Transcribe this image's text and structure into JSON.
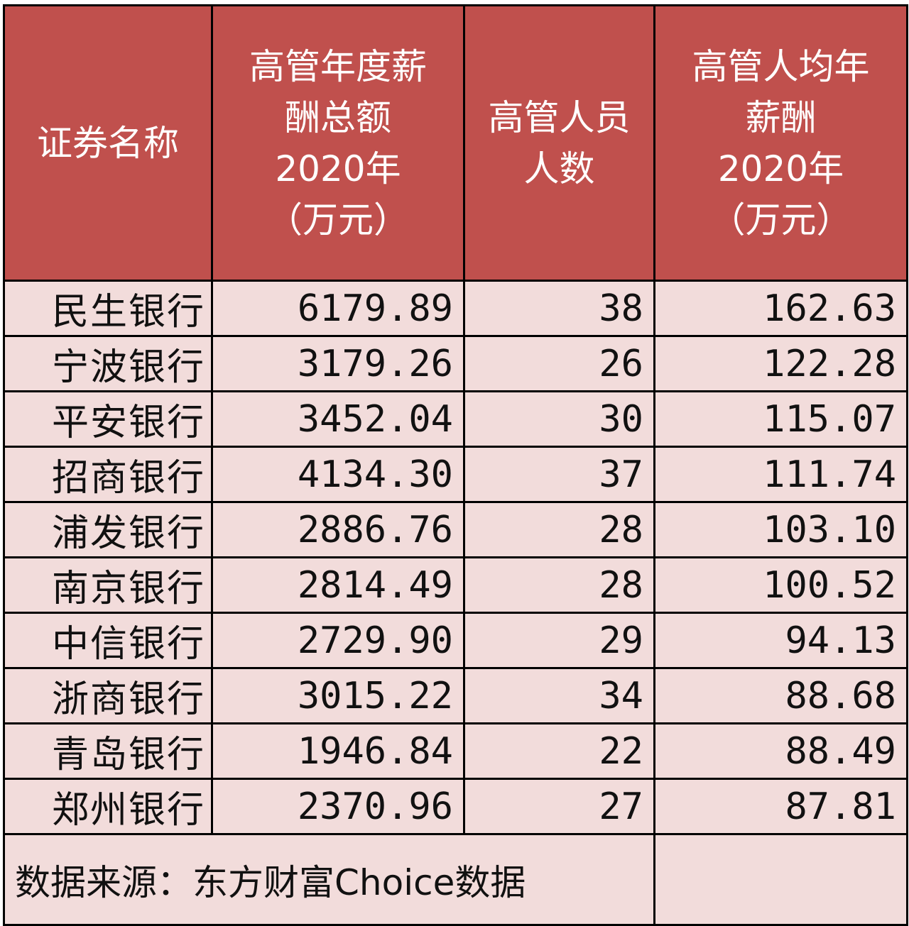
{
  "table": {
    "headers": [
      [
        "证券名称"
      ],
      [
        "高管年度薪",
        "酬总额",
        "2020年",
        "（万元）"
      ],
      [
        "高管人员",
        "人数"
      ],
      [
        "高管人均年",
        "薪酬",
        "2020年",
        "（万元）"
      ]
    ],
    "rows": [
      {
        "name": "民生银行",
        "total": "6179.89",
        "count": "38",
        "avg": "162.63"
      },
      {
        "name": "宁波银行",
        "total": "3179.26",
        "count": "26",
        "avg": "122.28"
      },
      {
        "name": "平安银行",
        "total": "3452.04",
        "count": "30",
        "avg": "115.07"
      },
      {
        "name": "招商银行",
        "total": "4134.30",
        "count": "37",
        "avg": "111.74"
      },
      {
        "name": "浦发银行",
        "total": "2886.76",
        "count": "28",
        "avg": "103.10"
      },
      {
        "name": "南京银行",
        "total": "2814.49",
        "count": "28",
        "avg": "100.52"
      },
      {
        "name": "中信银行",
        "total": "2729.90",
        "count": "29",
        "avg": "94.13"
      },
      {
        "name": "浙商银行",
        "total": "3015.22",
        "count": "34",
        "avg": "88.68"
      },
      {
        "name": "青岛银行",
        "total": "1946.84",
        "count": "22",
        "avg": "88.49"
      },
      {
        "name": "郑州银行",
        "total": "2370.96",
        "count": "27",
        "avg": "87.81"
      }
    ],
    "source": "数据来源：东方财富Choice数据"
  },
  "colors": {
    "header_bg": "#c0504d",
    "header_text": "#ffffff",
    "cell_bg": "#f2dcdb",
    "border": "#000000"
  }
}
